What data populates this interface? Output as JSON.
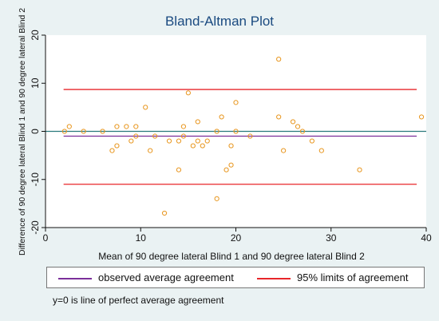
{
  "chart_data": {
    "type": "scatter",
    "title": "Bland-Altman Plot",
    "xlabel": "Mean of 90 degree lateral Blind 1 and 90 degree lateral Blind 2",
    "ylabel": "Difference of 90 degree lateral Blind 1 and 90 degree lateral Blind 2",
    "xlim": [
      0,
      40
    ],
    "ylim": [
      -20,
      20
    ],
    "xticks": [
      0,
      10,
      20,
      30,
      40
    ],
    "yticks": [
      -20,
      -10,
      0,
      10,
      20
    ],
    "grid": false,
    "points": [
      {
        "x": 2,
        "y": 0
      },
      {
        "x": 2.5,
        "y": 1
      },
      {
        "x": 4,
        "y": 0
      },
      {
        "x": 6,
        "y": 0
      },
      {
        "x": 7,
        "y": -4
      },
      {
        "x": 7.5,
        "y": 1
      },
      {
        "x": 7.5,
        "y": -3
      },
      {
        "x": 8.5,
        "y": 1
      },
      {
        "x": 9,
        "y": -2
      },
      {
        "x": 9.5,
        "y": 1
      },
      {
        "x": 9.5,
        "y": -1
      },
      {
        "x": 10.5,
        "y": 5
      },
      {
        "x": 11,
        "y": -4
      },
      {
        "x": 11.5,
        "y": -1
      },
      {
        "x": 12.5,
        "y": -17
      },
      {
        "x": 13,
        "y": -2
      },
      {
        "x": 14,
        "y": -2
      },
      {
        "x": 14,
        "y": -8
      },
      {
        "x": 14.5,
        "y": 1
      },
      {
        "x": 14.5,
        "y": -1
      },
      {
        "x": 15,
        "y": 8
      },
      {
        "x": 15.5,
        "y": -3
      },
      {
        "x": 16,
        "y": 2
      },
      {
        "x": 16,
        "y": -2
      },
      {
        "x": 16.5,
        "y": -3
      },
      {
        "x": 17,
        "y": -2
      },
      {
        "x": 18,
        "y": 0
      },
      {
        "x": 18,
        "y": -14
      },
      {
        "x": 18.5,
        "y": 3
      },
      {
        "x": 19,
        "y": -8
      },
      {
        "x": 19.5,
        "y": -3
      },
      {
        "x": 19.5,
        "y": -7
      },
      {
        "x": 20,
        "y": 6
      },
      {
        "x": 20,
        "y": 0
      },
      {
        "x": 21.5,
        "y": -1
      },
      {
        "x": 24.5,
        "y": 15
      },
      {
        "x": 24.5,
        "y": 3
      },
      {
        "x": 25,
        "y": -4
      },
      {
        "x": 26,
        "y": 2
      },
      {
        "x": 26.5,
        "y": 1
      },
      {
        "x": 27,
        "y": 0
      },
      {
        "x": 28,
        "y": -2
      },
      {
        "x": 29,
        "y": -4
      },
      {
        "x": 33,
        "y": -8
      },
      {
        "x": 39.5,
        "y": 3
      }
    ],
    "reference_lines": {
      "zero": 0,
      "mean": -1,
      "upper_limit": 8.7,
      "lower_limit": -11
    },
    "legend": {
      "position": "bottom",
      "entries": [
        {
          "label": "observed average agreement",
          "color": "#7b2f9a"
        },
        {
          "label": "95% limits of agreement",
          "color": "#e8262a"
        }
      ]
    },
    "note": "y=0 is line of perfect average agreement",
    "colors": {
      "background": "#eaf2f3",
      "plot_area": "#ffffff",
      "marker": "#e8961e",
      "zero_line": "#2a7a7c",
      "title": "#1a4a80"
    }
  }
}
